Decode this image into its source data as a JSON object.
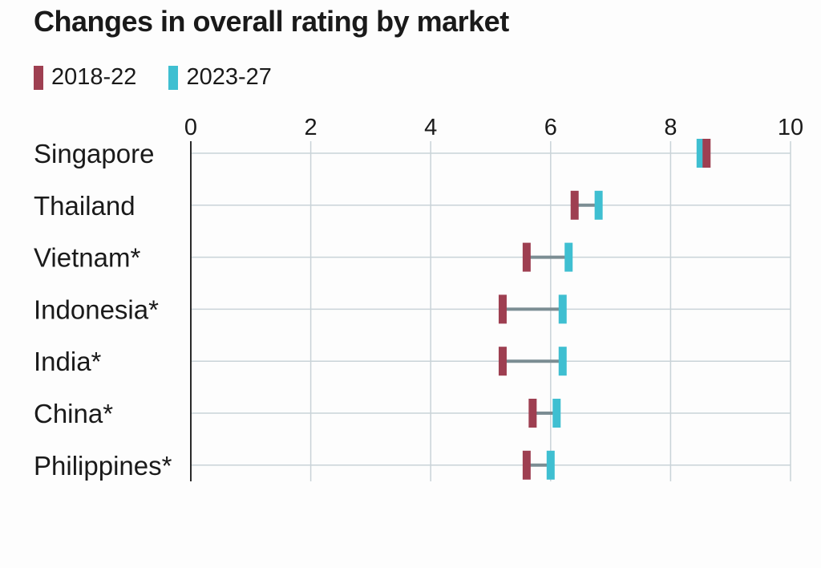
{
  "title": "Changes in overall rating by market",
  "chart_data": {
    "type": "dumbbell",
    "title": "Changes in overall rating by market",
    "xlim": [
      0,
      10
    ],
    "xticks": [
      0,
      2,
      4,
      6,
      8,
      10
    ],
    "grid": true,
    "legend_position": "top-left",
    "categories": [
      "Singapore",
      "Thailand",
      "Vietnam*",
      "Indonesia*",
      "India*",
      "China*",
      "Philippines*"
    ],
    "series": [
      {
        "name": "2018-22",
        "color": "#9e3f51",
        "values": [
          8.6,
          6.4,
          5.6,
          5.2,
          5.2,
          5.7,
          5.6
        ]
      },
      {
        "name": "2023-27",
        "color": "#3fbfd1",
        "values": [
          8.5,
          6.8,
          6.3,
          6.2,
          6.2,
          6.1,
          6.0
        ]
      }
    ],
    "connector_color": "#7b8d93",
    "grid_color": "#c9d3d8"
  }
}
